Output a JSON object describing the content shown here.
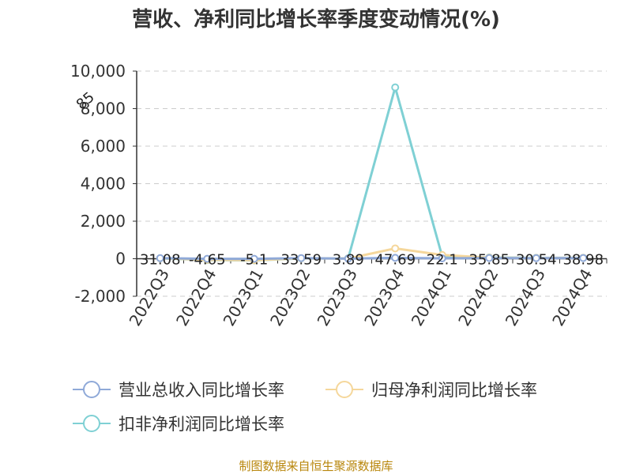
{
  "chart_data": {
    "type": "line",
    "title": "营收、净利同比增长率季度变动情况(%)",
    "categories": [
      "2022Q3",
      "2022Q4",
      "2023Q1",
      "2023Q2",
      "2023Q3",
      "2023Q4",
      "2024Q1",
      "2024Q2",
      "2024Q3",
      "2024Q4"
    ],
    "ylim": [
      -2000,
      10000
    ],
    "yticks": [
      -2000,
      0,
      2000,
      4000,
      6000,
      8000,
      10000
    ],
    "ytick_labels": [
      "-2,000",
      "0",
      "2,000",
      "4,000",
      "6,000",
      "8,000",
      "10,000"
    ],
    "grid": true,
    "legend_position": "bottom",
    "series": [
      {
        "name": "营业总收入同比增长率",
        "color": "#8fa9d8",
        "values": [
          31.08,
          -4.65,
          -5.1,
          33.59,
          3.89,
          47.69,
          22.1,
          35.85,
          30.54,
          38.98
        ]
      },
      {
        "name": "归母净利润同比增长率",
        "color": "#f5d79b",
        "values": [
          25,
          -60,
          -80,
          20,
          10,
          550,
          200,
          60,
          40,
          50
        ]
      },
      {
        "name": "扣非净利润同比增长率",
        "color": "#7fd0d4",
        "values": [
          20,
          -70,
          -90,
          15,
          20,
          9130,
          120,
          70,
          50,
          45
        ]
      }
    ],
    "data_labels": [
      "31.08",
      "-4.65",
      "-5.1",
      "33.59",
      "3.89",
      "47.69",
      "22.1",
      "35.85",
      "30.54",
      "38.98"
    ],
    "annotation": "85"
  },
  "source_text": "制图数据来自恒生聚源数据库"
}
